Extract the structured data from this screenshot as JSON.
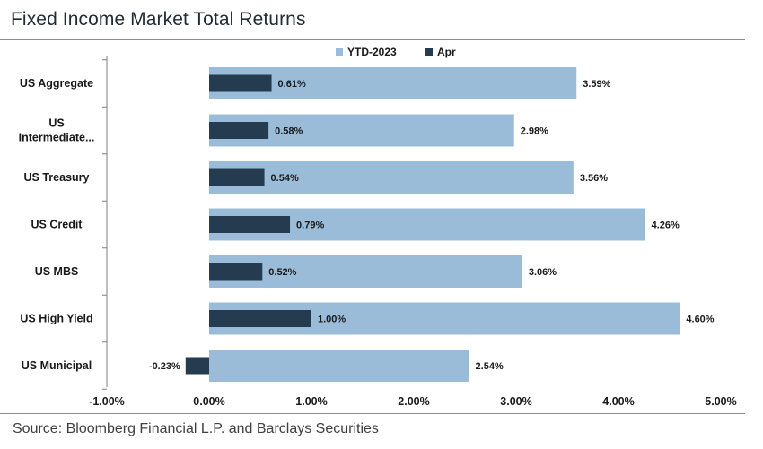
{
  "header": {
    "title": "Fixed Income Market Total Returns"
  },
  "footer": {
    "source": "Source: Bloomberg Financial L.P. and Barclays Securities"
  },
  "chart_data": {
    "type": "bar",
    "orientation": "horizontal",
    "categories": [
      "US Aggregate",
      "US Intermediate...",
      "US Treasury",
      "US Credit",
      "US MBS",
      "US High Yield",
      "US Municipal"
    ],
    "category_lines": [
      [
        "US Aggregate"
      ],
      [
        "US",
        "Intermediate..."
      ],
      [
        "US Treasury"
      ],
      [
        "US Credit"
      ],
      [
        "US MBS"
      ],
      [
        "US High Yield"
      ],
      [
        "US Municipal"
      ]
    ],
    "series": [
      {
        "name": "YTD-2023",
        "values": [
          3.59,
          2.98,
          3.56,
          4.26,
          3.06,
          4.6,
          2.54
        ],
        "labels": [
          "3.59%",
          "2.98%",
          "3.56%",
          "4.26%",
          "3.06%",
          "4.60%",
          "2.54%"
        ],
        "color": "#9bbcd8"
      },
      {
        "name": "Apr",
        "values": [
          0.61,
          0.58,
          0.54,
          0.79,
          0.52,
          1.0,
          -0.23
        ],
        "labels": [
          "0.61%",
          "0.58%",
          "0.54%",
          "0.79%",
          "0.52%",
          "1.00%",
          "-0.23%"
        ],
        "color": "#243b50"
      }
    ],
    "xlim": [
      -1.0,
      5.0
    ],
    "xticks": [
      -1.0,
      0.0,
      1.0,
      2.0,
      3.0,
      4.0,
      5.0
    ],
    "xtick_labels": [
      "-1.00%",
      "0.00%",
      "1.00%",
      "2.00%",
      "3.00%",
      "4.00%",
      "5.00%"
    ],
    "legend_position": "top-center",
    "grid": false,
    "xlabel": "",
    "ylabel": ""
  }
}
